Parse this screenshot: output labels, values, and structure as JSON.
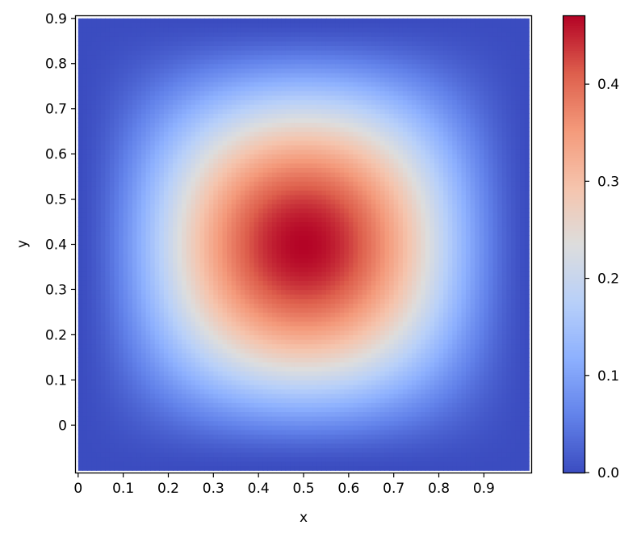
{
  "chart_data": {
    "type": "heatmap",
    "title": "",
    "xlabel": "x",
    "ylabel": "y",
    "xlim": [
      -0.005,
      1.005
    ],
    "ylim": [
      -0.105,
      0.905
    ],
    "x_ticks": [
      "0",
      "0.1",
      "0.2",
      "0.3",
      "0.4",
      "0.5",
      "0.6",
      "0.7",
      "0.8",
      "0.9"
    ],
    "y_ticks": [
      "0",
      "0.1",
      "0.2",
      "0.3",
      "0.4",
      "0.5",
      "0.6",
      "0.7",
      "0.8",
      "0.9"
    ],
    "grid": {
      "nx": 100,
      "ny": 100,
      "x_range": [
        0,
        1
      ],
      "y_range": [
        -0.1,
        0.9
      ],
      "peak": {
        "x": 0.5,
        "y": 0.4,
        "value": 0.47
      },
      "profile": "value = 0.47 * (sin(pi*x) * sin(pi*(y+0.1)))^1.6"
    },
    "colormap": "coolwarm",
    "colorbar": {
      "range": [
        0.0,
        0.47
      ],
      "ticks": [
        "0.0",
        "0.1",
        "0.2",
        "0.3",
        "0.4"
      ],
      "tick_values": [
        0.0,
        0.1,
        0.2,
        0.3,
        0.4
      ]
    },
    "legend": "none"
  }
}
